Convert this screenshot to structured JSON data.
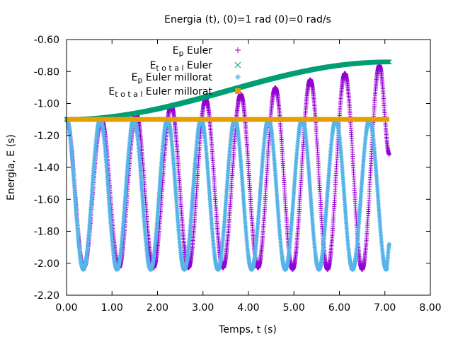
{
  "chart_data": {
    "type": "scatter",
    "title": "Energia (t),   (0)=1 rad   (0)=0 rad/s",
    "xlabel": "Temps, t (s)",
    "ylabel": "Energia, E (s)",
    "xlim": [
      0,
      8
    ],
    "ylim": [
      -2.2,
      -0.6
    ],
    "xticks": [
      "0.00",
      "1.00",
      "2.00",
      "3.00",
      "4.00",
      "5.00",
      "6.00",
      "7.00",
      "8.00"
    ],
    "yticks": [
      "-0.60",
      "-0.80",
      "-1.00",
      "-1.20",
      "-1.40",
      "-1.60",
      "-1.80",
      "-2.00",
      "-2.20"
    ],
    "grid": false,
    "legend_position": "top-left inside",
    "series": [
      {
        "id": "ep_euler",
        "name": "E_p Euler",
        "legend_main": "E",
        "legend_sub": "p",
        "legend_rest": " Euler",
        "marker": "+",
        "color": "#9400d3",
        "description": "oscillation starting at -1.10, minima near -2.04, maxima growing from -1.10 to -0.76 at t≈6.88, ends near -1.32 at t=7.10",
        "points": [
          [
            0.0,
            -1.1
          ],
          [
            0.38,
            -2.03
          ],
          [
            0.77,
            -1.1
          ],
          [
            1.15,
            -2.03
          ],
          [
            1.53,
            -1.06
          ],
          [
            1.91,
            -2.03
          ],
          [
            2.3,
            -1.01
          ],
          [
            2.68,
            -2.03
          ],
          [
            3.06,
            -0.97
          ],
          [
            3.44,
            -2.03
          ],
          [
            3.83,
            -0.94
          ],
          [
            4.21,
            -2.03
          ],
          [
            4.59,
            -0.9
          ],
          [
            4.97,
            -2.04
          ],
          [
            5.36,
            -0.85
          ],
          [
            5.74,
            -2.04
          ],
          [
            6.12,
            -0.81
          ],
          [
            6.5,
            -2.04
          ],
          [
            6.88,
            -0.76
          ],
          [
            7.1,
            -1.32
          ]
        ]
      },
      {
        "id": "etot_euler",
        "name": "E_total Euler",
        "legend_main": "E",
        "legend_sub": "t o t a l",
        "legend_rest": " Euler",
        "marker": "x",
        "color": "#009e73",
        "description": "linear increase",
        "points": [
          [
            0.0,
            -1.1
          ],
          [
            7.1,
            -0.74
          ]
        ]
      },
      {
        "id": "ep_millorat",
        "name": "E_p Euler millorat",
        "legend_main": "E",
        "legend_sub": "p",
        "legend_rest": " Euler millorat",
        "marker": "*",
        "color": "#56b4e9",
        "description": "stable oscillation between -1.10 and -2.04, period about 0.74 s, ends near -1.88 at t=7.10",
        "points": [
          [
            0.0,
            -1.1
          ],
          [
            0.37,
            -2.04
          ],
          [
            0.74,
            -1.1
          ],
          [
            1.11,
            -2.04
          ],
          [
            1.48,
            -1.1
          ],
          [
            1.85,
            -2.04
          ],
          [
            2.22,
            -1.1
          ],
          [
            2.59,
            -2.04
          ],
          [
            2.96,
            -1.1
          ],
          [
            3.33,
            -2.04
          ],
          [
            3.7,
            -1.1
          ],
          [
            4.07,
            -2.04
          ],
          [
            4.44,
            -1.1
          ],
          [
            4.81,
            -2.04
          ],
          [
            5.18,
            -1.1
          ],
          [
            5.55,
            -2.04
          ],
          [
            5.92,
            -1.1
          ],
          [
            6.29,
            -2.04
          ],
          [
            6.66,
            -1.1
          ],
          [
            7.03,
            -2.04
          ],
          [
            7.1,
            -1.88
          ]
        ]
      },
      {
        "id": "etot_millorat",
        "name": "E_total Euler millorat",
        "legend_main": "E",
        "legend_sub": "t o t a l",
        "legend_rest": " Euler millorat",
        "marker": "square",
        "color": "#e69f00",
        "description": "constant",
        "points": [
          [
            0.0,
            -1.1
          ],
          [
            7.1,
            -1.1
          ]
        ]
      }
    ]
  }
}
